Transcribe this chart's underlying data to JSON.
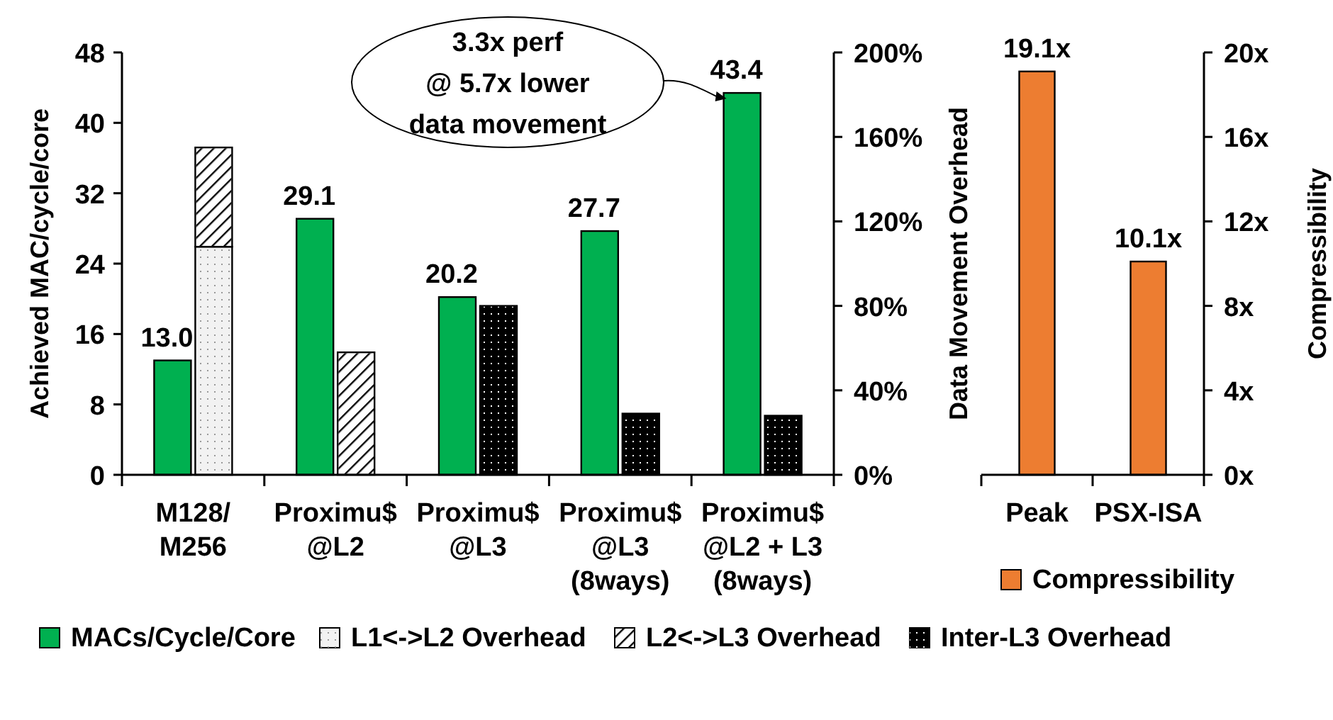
{
  "chart_data": [
    {
      "type": "bar",
      "stacked": true,
      "categories": [
        "M128/\nM256",
        "Proximu$\n@L2",
        "Proximu$\n@L3",
        "Proximu$\n@L3\n(8ways)",
        "Proximu$\n@L2 + L3\n(8ways)"
      ],
      "ylabel": "Achieved MAC/cycle/core",
      "y2label": "Data Movement Overhead",
      "ylim": [
        0,
        48
      ],
      "yticks": [
        0,
        8,
        16,
        24,
        32,
        40,
        48
      ],
      "y2lim": [
        0,
        200
      ],
      "y2ticks": [
        {
          "value": 0,
          "label": "0%"
        },
        {
          "value": 40,
          "label": "40%"
        },
        {
          "value": 80,
          "label": "80%"
        },
        {
          "value": 120,
          "label": "120%"
        },
        {
          "value": 160,
          "label": "160%"
        },
        {
          "value": 200,
          "label": "200%"
        }
      ],
      "series": [
        {
          "name": "MACs/Cycle/Core",
          "color": "#00b050",
          "values": [
            13.0,
            29.1,
            20.2,
            27.7,
            43.4
          ],
          "value_labels": [
            "13.0",
            "29.1",
            "20.2",
            "27.7",
            "43.4"
          ]
        },
        {
          "name": "L1<->L2 Overhead",
          "color": "#f2f2f2",
          "axis": "y2",
          "values": [
            108,
            null,
            null,
            null,
            null
          ]
        },
        {
          "name": "L2<->L3 Overhead",
          "color": "#ffffff",
          "axis": "y2",
          "values": [
            47,
            58,
            null,
            null,
            null
          ]
        },
        {
          "name": "Inter-L3 Overhead",
          "color": "#000000",
          "axis": "y2",
          "values": [
            null,
            null,
            80,
            29,
            28
          ]
        }
      ],
      "annotations": [
        "3.3x perf\n@ 5.7x lower\ndata movement"
      ],
      "legend": "bottom"
    },
    {
      "type": "bar",
      "categories": [
        "Peak",
        "PSX-ISA"
      ],
      "y2label": "Compressibility",
      "y2lim": [
        0,
        20
      ],
      "y2ticks": [
        {
          "value": 0,
          "label": "0x"
        },
        {
          "value": 4,
          "label": "4x"
        },
        {
          "value": 8,
          "label": "8x"
        },
        {
          "value": 12,
          "label": "12x"
        },
        {
          "value": 16,
          "label": "16x"
        },
        {
          "value": 20,
          "label": "20x"
        }
      ],
      "series": [
        {
          "name": "Compressibility",
          "color": "#ed7d31",
          "axis": "y2",
          "values": [
            19.1,
            10.1
          ],
          "value_labels": [
            "19.1x",
            "10.1x"
          ]
        }
      ],
      "legend": "bottom"
    }
  ]
}
